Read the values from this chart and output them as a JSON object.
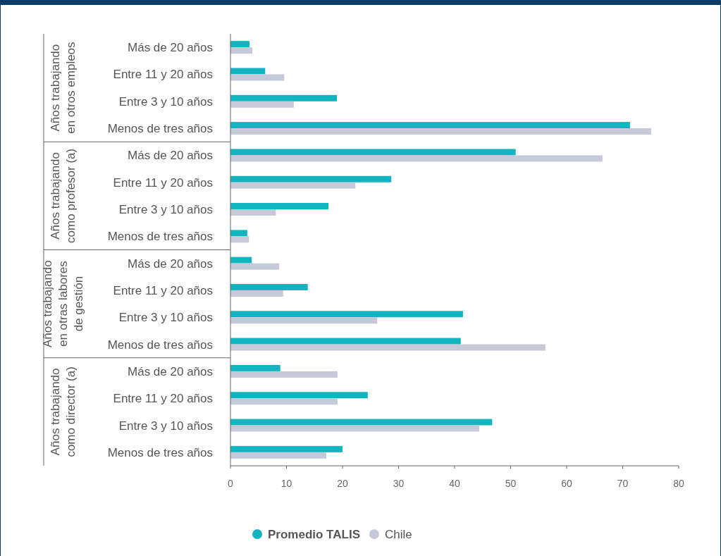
{
  "chart_data": {
    "type": "bar",
    "orientation": "horizontal",
    "categories": [
      "Más de 20 años",
      "Entre 11 y 20 años",
      "Entre 3 y 10 años",
      "Menos de tres años",
      "Más de 20 años",
      "Entre 11 y 20 años",
      "Entre 3 y 10 años",
      "Menos de tres años",
      "Más de 20 años",
      "Entre 11 y 20 años",
      "Entre 3 y 10 años",
      "Menos de tres años",
      "Más de 20 años",
      "Entre 11 y 20 años",
      "Entre 3 y 10 años",
      "Menos de tres años"
    ],
    "series": [
      {
        "name": "Promedio TALIS",
        "color": "#12b5bf",
        "values": [
          3.4,
          6.2,
          19,
          71.3,
          50.9,
          28.7,
          17.5,
          3,
          3.8,
          13.8,
          41.5,
          41.1,
          8.9,
          24.5,
          46.7,
          20
        ]
      },
      {
        "name": "Chile",
        "color": "#c5cad8",
        "values": [
          3.9,
          9.6,
          11.3,
          75.1,
          66.4,
          22.3,
          8.1,
          3.3,
          8.7,
          9.4,
          26.2,
          56.2,
          19.1,
          19.1,
          44.4,
          17.1
        ]
      }
    ],
    "xlim": [
      0,
      80
    ],
    "xticks": [
      0,
      10,
      20,
      30,
      40,
      50,
      60,
      70,
      80
    ],
    "grid": false,
    "legend": "bottom",
    "annotations": [
      "Años trabajando en otros empleos",
      "Años trabajando como profesor (a)",
      "Años trabajando en otras labores de gestión",
      "Años trabajando como director (a)"
    ]
  }
}
